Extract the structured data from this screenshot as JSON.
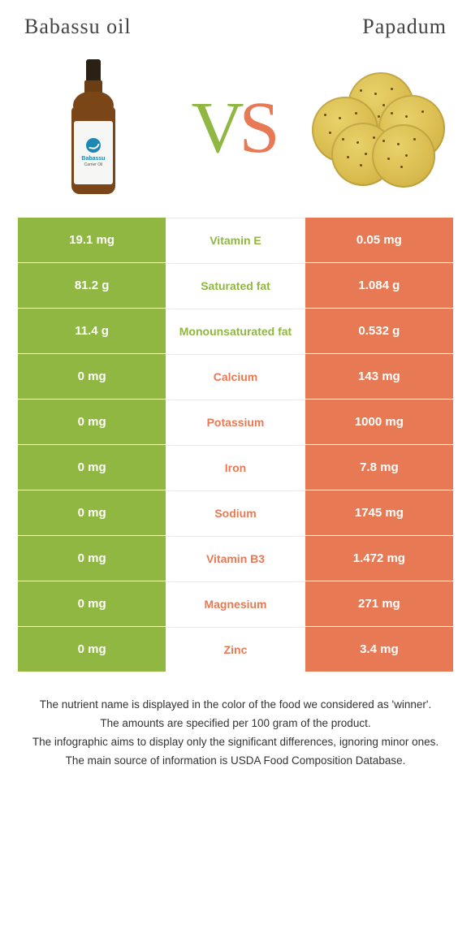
{
  "header": {
    "left_title": "Babassu oil",
    "right_title": "Papadum"
  },
  "vs": {
    "v": "V",
    "s": "S"
  },
  "colors": {
    "left_bg": "#8fb741",
    "right_bg": "#e77a54",
    "left_text_winner": "#8fb741",
    "right_text_winner": "#e77a54",
    "cell_text": "#ffffff",
    "mid_bg": "#ffffff",
    "mid_border": "#e9e9e9"
  },
  "table": {
    "type": "table",
    "rows": [
      {
        "left": "19.1 mg",
        "label": "Vitamin E",
        "right": "0.05 mg",
        "winner": "left"
      },
      {
        "left": "81.2 g",
        "label": "Saturated fat",
        "right": "1.084 g",
        "winner": "left"
      },
      {
        "left": "11.4 g",
        "label": "Monounsaturated fat",
        "right": "0.532 g",
        "winner": "left"
      },
      {
        "left": "0 mg",
        "label": "Calcium",
        "right": "143 mg",
        "winner": "right"
      },
      {
        "left": "0 mg",
        "label": "Potassium",
        "right": "1000 mg",
        "winner": "right"
      },
      {
        "left": "0 mg",
        "label": "Iron",
        "right": "7.8 mg",
        "winner": "right"
      },
      {
        "left": "0 mg",
        "label": "Sodium",
        "right": "1745 mg",
        "winner": "right"
      },
      {
        "left": "0 mg",
        "label": "Vitamin B3",
        "right": "1.472 mg",
        "winner": "right"
      },
      {
        "left": "0 mg",
        "label": "Magnesium",
        "right": "271 mg",
        "winner": "right"
      },
      {
        "left": "0 mg",
        "label": "Zinc",
        "right": "3.4 mg",
        "winner": "right"
      }
    ]
  },
  "footnotes": [
    "The nutrient name is displayed in the color of the food we considered as 'winner'.",
    "The amounts are specified per 100 gram of the product.",
    "The infographic aims to display only the significant differences, ignoring minor ones.",
    "The main source of information is USDA Food Composition Database."
  ],
  "bottle_label": {
    "line1": "Babassu",
    "line2": "Carrier Oil"
  }
}
